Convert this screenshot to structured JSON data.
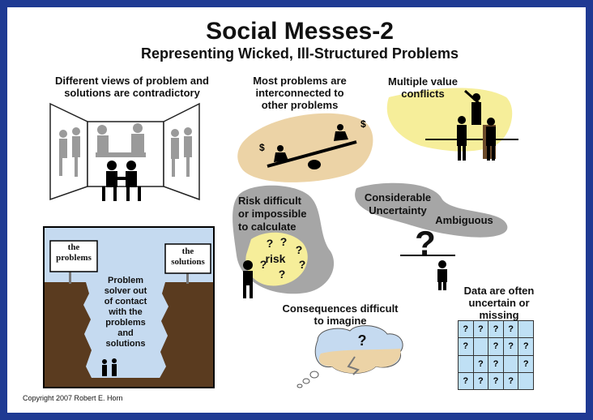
{
  "title": "Social Messes-2",
  "subtitle": "Representing Wicked, Ill-Structured Problems",
  "panels": {
    "contradictory": "Different views of problem and\nsolutions are contradictory",
    "interconnected": "Most problems are\ninterconnected to\nother problems",
    "value_conflicts": "Multiple value\nconflicts",
    "risk": "Risk difficult\nor impossible\nto calculate",
    "risk_word": "risk",
    "uncertainty": "Considerable\nUncertainty",
    "ambiguous": "Ambiguous",
    "consequences": "Consequences difficult\nto imagine",
    "data_missing": "Data are often\nuncertain or\nmissing"
  },
  "chasm": {
    "left_sign": "the\nproblems",
    "right_sign": "the\nsolutions",
    "caption": "Problem\nsolver out\nof contact\nwith the\nproblems\nand\nsolutions"
  },
  "grid": {
    "rows": [
      [
        "?",
        "?",
        "?",
        "?",
        ""
      ],
      [
        "?",
        "",
        "?",
        "?",
        "?"
      ],
      [
        "",
        "?",
        "?",
        "",
        "?"
      ],
      [
        "?",
        "?",
        "?",
        "?",
        ""
      ]
    ]
  },
  "copyright": "Copyright 2007 Robert E. Horn",
  "colors": {
    "border": "#1f3a93",
    "tan_blob": "#ecd3a6",
    "yellow_blob": "#f6ee9a",
    "gray_blob": "#a6a6a6",
    "sky": "#c5daf0",
    "earth": "#5a3b1f",
    "grid_cell": "#bfe0f5"
  }
}
